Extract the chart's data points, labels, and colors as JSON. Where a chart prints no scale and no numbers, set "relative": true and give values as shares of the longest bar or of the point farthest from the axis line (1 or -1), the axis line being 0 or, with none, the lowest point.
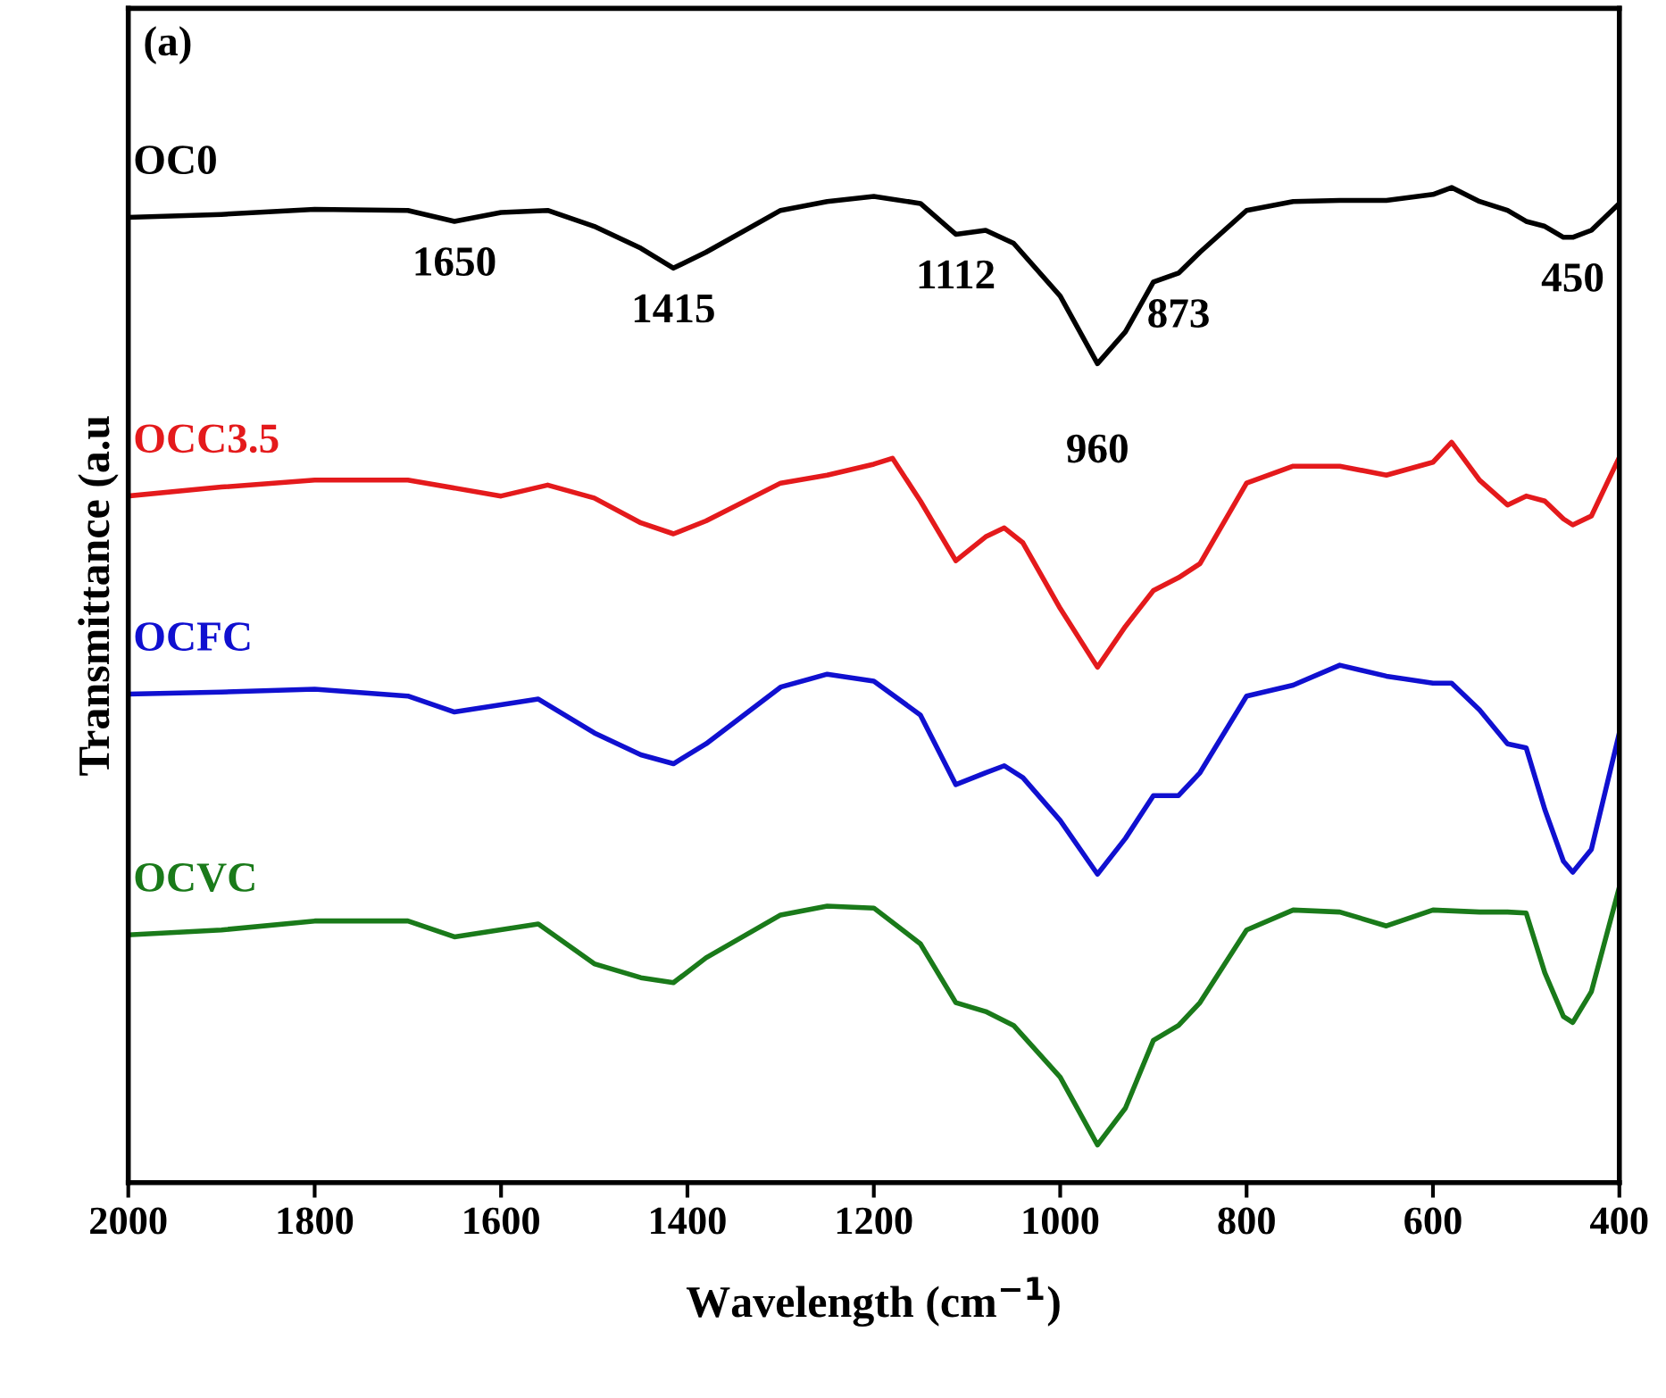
{
  "chart_data": {
    "type": "line",
    "relative": true,
    "xlabel": "Wavelength (cm$^{−1}$)",
    "ylabel": "Transmittance (a.u",
    "xlim": [
      2000,
      400
    ],
    "xticks": [
      2000,
      1800,
      1600,
      1400,
      1200,
      1000,
      800,
      600,
      400
    ],
    "grid": false,
    "legend": false,
    "marker": "none",
    "line_style": "solid",
    "annotations": [
      "(a)",
      {
        "text": "1650",
        "x": 1650,
        "y": 0.966
      },
      {
        "text": "1415",
        "x": 1415,
        "y": 0.919
      },
      {
        "text": "1112",
        "x": 1112,
        "y": 0.953
      },
      {
        "text": "960",
        "x": 960,
        "y": 0.823
      },
      {
        "text": "873",
        "x": 873,
        "y": 0.914
      },
      {
        "text": "450",
        "x": 450,
        "y": 0.95
      }
    ],
    "series": [
      {
        "name": "OC0",
        "color": "#000000",
        "x": [
          2000,
          1900,
          1800,
          1700,
          1650,
          1600,
          1550,
          1500,
          1450,
          1415,
          1380,
          1300,
          1250,
          1200,
          1150,
          1112,
          1080,
          1050,
          1000,
          960,
          930,
          900,
          873,
          850,
          800,
          750,
          700,
          650,
          600,
          580,
          550,
          520,
          500,
          480,
          460,
          450,
          430,
          400
        ],
        "values": [
          0.97,
          0.973,
          0.978,
          0.977,
          0.966,
          0.975,
          0.977,
          0.961,
          0.939,
          0.919,
          0.935,
          0.977,
          0.986,
          0.991,
          0.984,
          0.953,
          0.957,
          0.944,
          0.891,
          0.823,
          0.855,
          0.905,
          0.914,
          0.935,
          0.977,
          0.986,
          0.987,
          0.987,
          0.993,
          1.0,
          0.986,
          0.977,
          0.966,
          0.961,
          0.95,
          0.95,
          0.957,
          0.984
        ]
      },
      {
        "name": "OCC3.5",
        "color": "#e41a1c",
        "x": [
          2000,
          1900,
          1800,
          1700,
          1600,
          1550,
          1500,
          1450,
          1415,
          1380,
          1300,
          1250,
          1200,
          1180,
          1150,
          1112,
          1080,
          1060,
          1040,
          1000,
          960,
          930,
          900,
          873,
          850,
          800,
          750,
          700,
          650,
          600,
          580,
          550,
          520,
          500,
          480,
          460,
          450,
          430,
          400
        ],
        "values": [
          0.69,
          0.699,
          0.706,
          0.706,
          0.69,
          0.701,
          0.688,
          0.663,
          0.652,
          0.665,
          0.703,
          0.711,
          0.722,
          0.728,
          0.685,
          0.625,
          0.649,
          0.658,
          0.643,
          0.577,
          0.518,
          0.559,
          0.595,
          0.608,
          0.622,
          0.703,
          0.72,
          0.72,
          0.711,
          0.724,
          0.744,
          0.706,
          0.681,
          0.69,
          0.685,
          0.667,
          0.661,
          0.67,
          0.729
        ]
      },
      {
        "name": "OCFC",
        "color": "#1010d0",
        "x": [
          2000,
          1900,
          1800,
          1700,
          1650,
          1560,
          1500,
          1450,
          1415,
          1380,
          1300,
          1250,
          1200,
          1150,
          1112,
          1080,
          1060,
          1040,
          1000,
          960,
          930,
          900,
          873,
          850,
          800,
          750,
          700,
          650,
          600,
          580,
          550,
          520,
          500,
          480,
          460,
          450,
          430,
          400
        ],
        "values": [
          0.491,
          0.493,
          0.496,
          0.489,
          0.473,
          0.486,
          0.452,
          0.43,
          0.421,
          0.441,
          0.498,
          0.511,
          0.504,
          0.47,
          0.4,
          0.412,
          0.419,
          0.407,
          0.364,
          0.31,
          0.346,
          0.389,
          0.389,
          0.412,
          0.489,
          0.5,
          0.52,
          0.509,
          0.502,
          0.502,
          0.475,
          0.441,
          0.437,
          0.375,
          0.323,
          0.312,
          0.335,
          0.452
        ]
      },
      {
        "name": "OCVC",
        "color": "#1a7a1a",
        "x": [
          2000,
          1900,
          1800,
          1700,
          1650,
          1560,
          1500,
          1450,
          1415,
          1380,
          1300,
          1250,
          1200,
          1150,
          1112,
          1080,
          1050,
          1000,
          960,
          930,
          900,
          873,
          850,
          800,
          750,
          700,
          650,
          600,
          550,
          520,
          500,
          480,
          460,
          450,
          430,
          400
        ],
        "values": [
          0.249,
          0.254,
          0.263,
          0.263,
          0.247,
          0.26,
          0.22,
          0.206,
          0.201,
          0.226,
          0.269,
          0.278,
          0.276,
          0.24,
          0.181,
          0.172,
          0.158,
          0.106,
          0.038,
          0.075,
          0.143,
          0.158,
          0.181,
          0.254,
          0.274,
          0.272,
          0.258,
          0.274,
          0.272,
          0.272,
          0.271,
          0.211,
          0.167,
          0.161,
          0.192,
          0.297
        ]
      }
    ]
  }
}
